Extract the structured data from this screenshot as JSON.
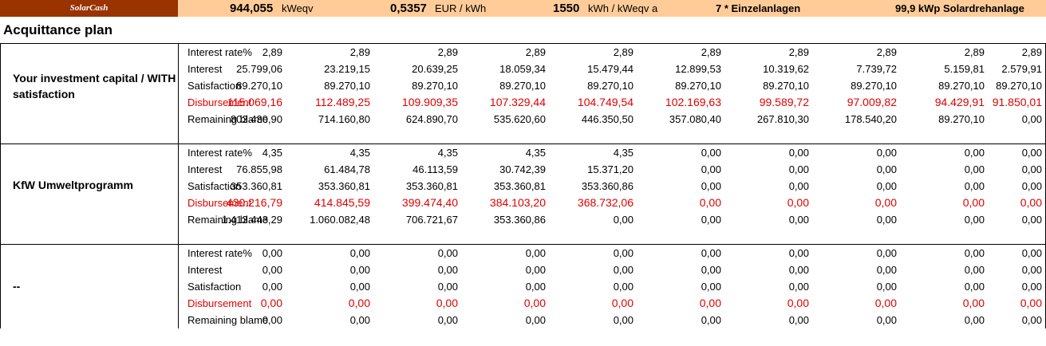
{
  "header": {
    "brand": "SolarCash",
    "energy_value": "944,055",
    "energy_unit": "kWeqv",
    "price_value": "0,5357",
    "price_unit": "EUR / kWh",
    "yield_value": "1550",
    "yield_unit": "kWh / kWeqv a",
    "systems": "7 * Einzelanlagen",
    "plant": "99,9 kWp Solardrehanlage"
  },
  "title": "Acquittance plan",
  "colors": {
    "header_bg": "#FFCC99",
    "brand_bg": "#993300",
    "disbursement": "#E00000"
  },
  "sections": [
    {
      "label": "Your investment capital / WITH satisfaction",
      "rows": [
        {
          "label": "Interest rate%",
          "values": [
            "2,89",
            "2,89",
            "2,89",
            "2,89",
            "2,89",
            "2,89",
            "2,89",
            "2,89",
            "2,89",
            "2,89"
          ]
        },
        {
          "label": "Interest",
          "values": [
            "25.799,06",
            "23.219,15",
            "20.639,25",
            "18.059,34",
            "15.479,44",
            "12.899,53",
            "10.319,62",
            "7.739,72",
            "5.159,81",
            "2.579,91"
          ]
        },
        {
          "label": "Satisfaction",
          "values": [
            "89.270,10",
            "89.270,10",
            "89.270,10",
            "89.270,10",
            "89.270,10",
            "89.270,10",
            "89.270,10",
            "89.270,10",
            "89.270,10",
            "89.270,10"
          ]
        },
        {
          "label": "Disbursement",
          "values": [
            "115.069,16",
            "112.489,25",
            "109.909,35",
            "107.329,44",
            "104.749,54",
            "102.169,63",
            "99.589,72",
            "97.009,82",
            "94.429,91",
            "91.850,01"
          ]
        },
        {
          "label": "Remaining blame",
          "values": [
            "803.430,90",
            "714.160,80",
            "624.890,70",
            "535.620,60",
            "446.350,50",
            "357.080,40",
            "267.810,30",
            "178.540,20",
            "89.270,10",
            "0,00"
          ]
        }
      ]
    },
    {
      "label": "KfW Umweltprogramm",
      "rows": [
        {
          "label": "Interest rate%",
          "values": [
            "4,35",
            "4,35",
            "4,35",
            "4,35",
            "4,35",
            "0,00",
            "0,00",
            "0,00",
            "0,00",
            "0,00"
          ]
        },
        {
          "label": "Interest",
          "values": [
            "76.855,98",
            "61.484,78",
            "46.113,59",
            "30.742,39",
            "15.371,20",
            "0,00",
            "0,00",
            "0,00",
            "0,00",
            "0,00"
          ]
        },
        {
          "label": "Satisfaction",
          "values": [
            "353.360,81",
            "353.360,81",
            "353.360,81",
            "353.360,81",
            "353.360,86",
            "0,00",
            "0,00",
            "0,00",
            "0,00",
            "0,00"
          ]
        },
        {
          "label": "Disbursement",
          "values": [
            "430.216,79",
            "414.845,59",
            "399.474,40",
            "384.103,20",
            "368.732,06",
            "0,00",
            "0,00",
            "0,00",
            "0,00",
            "0,00"
          ]
        },
        {
          "label": "Remaining blame",
          "values": [
            "1.413.443,29",
            "1.060.082,48",
            "706.721,67",
            "353.360,86",
            "0,00",
            "0,00",
            "0,00",
            "0,00",
            "0,00",
            "0,00"
          ]
        }
      ]
    },
    {
      "label": "--",
      "rows": [
        {
          "label": "Interest rate%",
          "values": [
            "0,00",
            "0,00",
            "0,00",
            "0,00",
            "0,00",
            "0,00",
            "0,00",
            "0,00",
            "0,00",
            "0,00"
          ]
        },
        {
          "label": "Interest",
          "values": [
            "0,00",
            "0,00",
            "0,00",
            "0,00",
            "0,00",
            "0,00",
            "0,00",
            "0,00",
            "0,00",
            "0,00"
          ]
        },
        {
          "label": "Satisfaction",
          "values": [
            "0,00",
            "0,00",
            "0,00",
            "0,00",
            "0,00",
            "0,00",
            "0,00",
            "0,00",
            "0,00",
            "0,00"
          ]
        },
        {
          "label": "Disbursement",
          "values": [
            "0,00",
            "0,00",
            "0,00",
            "0,00",
            "0,00",
            "0,00",
            "0,00",
            "0,00",
            "0,00",
            "0,00"
          ]
        },
        {
          "label": "Remaining blame",
          "values": [
            "0,00",
            "0,00",
            "0,00",
            "0,00",
            "0,00",
            "0,00",
            "0,00",
            "0,00",
            "0,00",
            "0,00"
          ]
        }
      ]
    }
  ]
}
